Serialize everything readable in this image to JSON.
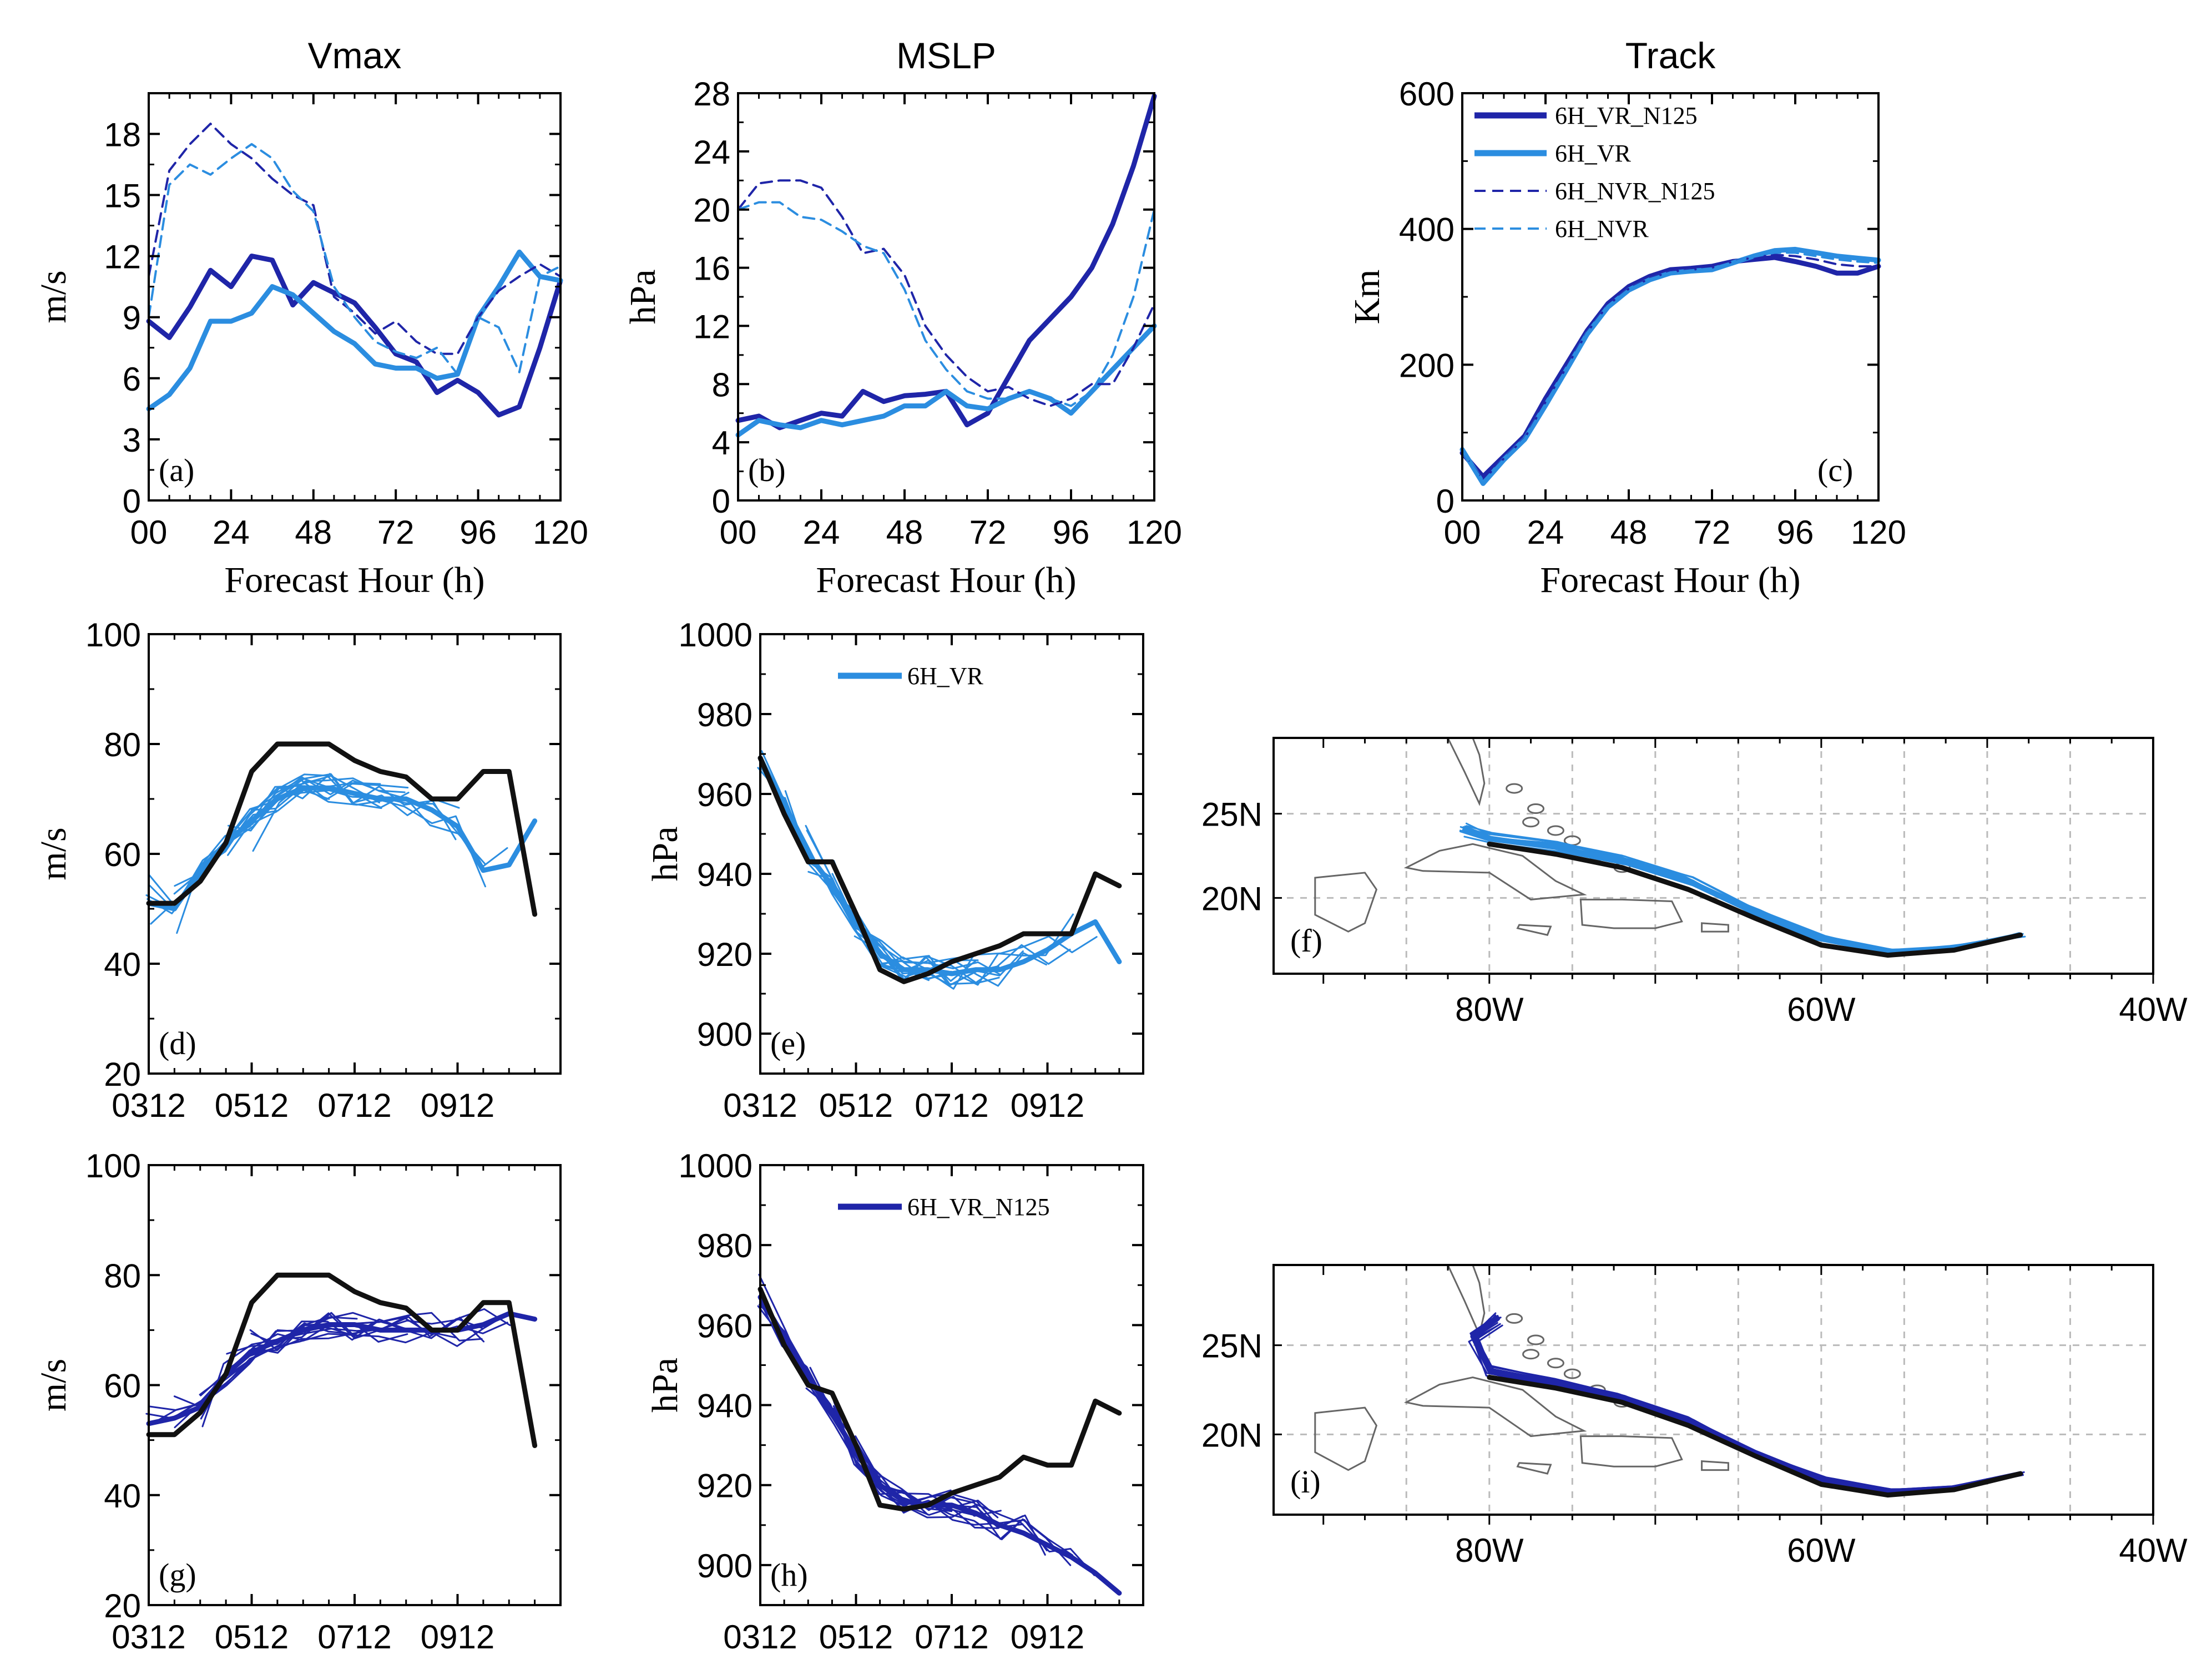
{
  "colors": {
    "vr_n125": "#1f25a8",
    "vr": "#2b8de0",
    "obs": "#111111",
    "map_coast": "#666666",
    "grid": "#bbbbbb"
  },
  "legend_a": [
    "6H_VR_N125",
    "6H_VR",
    "6H_NVR_N125",
    "6H_NVR"
  ],
  "legend_e": "6H_VR",
  "legend_h": "6H_VR_N125",
  "chart_data": [
    {
      "panel": "(a)",
      "type": "line",
      "title": "Vmax",
      "xlabel": "Forecast Hour (h)",
      "ylabel": "m/s",
      "xlim": [
        0,
        120
      ],
      "ylim": [
        0,
        20
      ],
      "xticks": [
        0,
        24,
        48,
        72,
        96,
        120
      ],
      "xtick_labels": [
        "00",
        "24",
        "48",
        "72",
        "96",
        "120"
      ],
      "yticks": [
        0,
        3,
        6,
        9,
        12,
        15,
        18
      ],
      "ytick_labels": [
        "0",
        "3",
        "6",
        "9",
        "12",
        "15",
        "18"
      ],
      "x": [
        0,
        6,
        12,
        18,
        24,
        30,
        36,
        42,
        48,
        54,
        60,
        66,
        72,
        78,
        84,
        90,
        96,
        102,
        108,
        114,
        120
      ],
      "series": [
        {
          "name": "6H_VR_N125",
          "style": "thick",
          "values": [
            8.8,
            8.0,
            9.5,
            11.3,
            10.5,
            12.0,
            11.8,
            9.6,
            10.7,
            10.2,
            9.7,
            8.5,
            7.2,
            6.8,
            5.3,
            5.9,
            5.3,
            4.2,
            4.6,
            7.5,
            10.8
          ]
        },
        {
          "name": "6H_VR",
          "style": "thick",
          "values": [
            4.5,
            5.2,
            6.5,
            8.8,
            8.8,
            9.2,
            10.5,
            10.1,
            9.2,
            8.3,
            7.7,
            6.7,
            6.5,
            6.5,
            6.0,
            6.2,
            9.0,
            10.5,
            12.2,
            11.0,
            10.8
          ]
        },
        {
          "name": "6H_NVR_N125",
          "style": "dashed",
          "values": [
            11.0,
            16.2,
            17.5,
            18.5,
            17.5,
            16.8,
            15.8,
            15.0,
            14.5,
            10.0,
            9.2,
            8.2,
            8.8,
            7.8,
            7.2,
            7.2,
            9.0,
            10.3,
            11.0,
            11.6,
            11.0
          ]
        },
        {
          "name": "6H_NVR",
          "style": "dashed",
          "values": [
            9.0,
            15.5,
            16.5,
            16.0,
            16.8,
            17.5,
            16.8,
            15.2,
            14.2,
            10.5,
            9.0,
            7.8,
            7.3,
            7.0,
            7.5,
            6.2,
            9.0,
            8.5,
            6.3,
            11.0,
            11.5
          ]
        }
      ]
    },
    {
      "panel": "(b)",
      "type": "line",
      "title": "MSLP",
      "xlabel": "Forecast Hour (h)",
      "ylabel": "hPa",
      "xlim": [
        0,
        120
      ],
      "ylim": [
        0,
        28
      ],
      "xticks": [
        0,
        24,
        48,
        72,
        96,
        120
      ],
      "xtick_labels": [
        "00",
        "24",
        "48",
        "72",
        "96",
        "120"
      ],
      "yticks": [
        0,
        4,
        8,
        12,
        16,
        20,
        24,
        28
      ],
      "ytick_labels": [
        "0",
        "4",
        "8",
        "12",
        "16",
        "20",
        "24",
        "28"
      ],
      "x": [
        0,
        6,
        12,
        18,
        24,
        30,
        36,
        42,
        48,
        54,
        60,
        66,
        72,
        78,
        84,
        90,
        96,
        102,
        108,
        114,
        120
      ],
      "series": [
        {
          "name": "6H_VR_N125",
          "style": "thick",
          "values": [
            5.5,
            5.8,
            5.0,
            5.5,
            6.0,
            5.8,
            7.5,
            6.8,
            7.2,
            7.3,
            7.5,
            5.2,
            6.0,
            8.5,
            11.0,
            12.5,
            14.0,
            16.0,
            19.0,
            23.0,
            27.8
          ]
        },
        {
          "name": "6H_VR",
          "style": "thick",
          "values": [
            4.5,
            5.5,
            5.2,
            5.0,
            5.5,
            5.2,
            5.5,
            5.8,
            6.5,
            6.5,
            7.5,
            6.5,
            6.3,
            7.0,
            7.5,
            7.0,
            6.0,
            7.5,
            9.0,
            10.5,
            12.0
          ]
        },
        {
          "name": "6H_NVR_N125",
          "style": "dashed",
          "values": [
            20.0,
            21.8,
            22.0,
            22.0,
            21.5,
            19.5,
            17.0,
            17.3,
            15.5,
            12.0,
            10.0,
            8.5,
            7.5,
            7.8,
            7.0,
            6.5,
            7.0,
            8.0,
            8.0,
            10.5,
            13.5
          ]
        },
        {
          "name": "6H_NVR",
          "style": "dashed",
          "values": [
            20.0,
            20.5,
            20.5,
            19.5,
            19.3,
            18.5,
            17.5,
            17.0,
            14.5,
            11.0,
            9.0,
            7.5,
            7.0,
            7.0,
            7.5,
            7.0,
            6.5,
            7.5,
            10.0,
            14.0,
            20.0
          ]
        }
      ]
    },
    {
      "panel": "(c)",
      "type": "line",
      "title": "Track",
      "xlabel": "Forecast Hour (h)",
      "ylabel": "Km",
      "xlim": [
        0,
        120
      ],
      "ylim": [
        0,
        600
      ],
      "xticks": [
        0,
        24,
        48,
        72,
        96,
        120
      ],
      "xtick_labels": [
        "00",
        "24",
        "48",
        "72",
        "96",
        "120"
      ],
      "yticks": [
        0,
        200,
        400,
        600
      ],
      "ytick_labels": [
        "0",
        "200",
        "400",
        "600"
      ],
      "x": [
        0,
        6,
        12,
        18,
        24,
        30,
        36,
        42,
        48,
        54,
        60,
        66,
        72,
        78,
        84,
        90,
        96,
        102,
        108,
        114,
        120
      ],
      "series": [
        {
          "name": "6H_VR_N125",
          "style": "thick",
          "values": [
            70,
            35,
            65,
            95,
            150,
            200,
            250,
            290,
            315,
            330,
            340,
            342,
            345,
            352,
            355,
            358,
            352,
            345,
            335,
            335,
            345
          ]
        },
        {
          "name": "6H_VR",
          "style": "thick",
          "values": [
            75,
            25,
            60,
            90,
            140,
            192,
            245,
            285,
            310,
            325,
            335,
            338,
            340,
            350,
            360,
            368,
            370,
            365,
            360,
            357,
            354
          ]
        },
        {
          "name": "6H_NVR_N125",
          "style": "dashed",
          "values": [
            72,
            30,
            62,
            92,
            145,
            196,
            248,
            288,
            312,
            327,
            337,
            340,
            343,
            352,
            358,
            362,
            360,
            355,
            348,
            345,
            345
          ]
        },
        {
          "name": "6H_NVR",
          "style": "dashed",
          "values": [
            73,
            28,
            61,
            91,
            143,
            194,
            247,
            287,
            311,
            326,
            336,
            339,
            342,
            351,
            359,
            365,
            365,
            360,
            355,
            352,
            350
          ]
        }
      ]
    },
    {
      "panel": "(d)",
      "type": "line",
      "ylabel": "m/s",
      "xlim": [
        0,
        8
      ],
      "ylim": [
        20,
        100
      ],
      "xticks": [
        0,
        2,
        4,
        6
      ],
      "xtick_labels": [
        "0312",
        "0512",
        "0712",
        "0912"
      ],
      "yticks": [
        20,
        40,
        60,
        80,
        100
      ],
      "ytick_labels": [
        "20",
        "40",
        "60",
        "80",
        "100"
      ],
      "observed": {
        "x": [
          0,
          0.5,
          1,
          1.5,
          2,
          2.5,
          3,
          3.5,
          4,
          4.5,
          5,
          5.5,
          6,
          6.5,
          7,
          7.5
        ],
        "values": [
          51,
          51,
          55,
          62,
          75,
          80,
          80,
          80,
          77,
          75,
          74,
          70,
          70,
          75,
          75,
          49
        ]
      },
      "ensemble": "6H_VR",
      "ensemble_mean_x": [
        0,
        0.5,
        1,
        1.5,
        2,
        2.5,
        3,
        3.5,
        4,
        4.5,
        5,
        5.5,
        6,
        6.5,
        7,
        7.5
      ],
      "ensemble_mean": [
        51,
        50,
        57,
        62,
        66,
        70,
        72,
        72,
        71,
        70,
        70,
        68,
        65,
        57,
        58,
        66
      ]
    },
    {
      "panel": "(e)",
      "type": "line",
      "ylabel": "hPa",
      "xlim": [
        0,
        8
      ],
      "ylim": [
        890,
        1000
      ],
      "xticks": [
        0,
        2,
        4,
        6
      ],
      "xtick_labels": [
        "0312",
        "0512",
        "0712",
        "0912"
      ],
      "yticks": [
        900,
        920,
        940,
        960,
        980,
        1000
      ],
      "ytick_labels": [
        "900",
        "920",
        "940",
        "960",
        "980",
        "1000"
      ],
      "observed": {
        "x": [
          0,
          0.5,
          1,
          1.5,
          2,
          2.5,
          3,
          3.5,
          4,
          4.5,
          5,
          5.5,
          6,
          6.5,
          7,
          7.5
        ],
        "values": [
          969,
          955,
          943,
          943,
          930,
          916,
          913,
          915,
          918,
          920,
          922,
          925,
          925,
          925,
          940,
          937
        ]
      },
      "ensemble": "6H_VR",
      "ensemble_mean_x": [
        0,
        0.5,
        1,
        1.5,
        2,
        2.5,
        3,
        3.5,
        4,
        4.5,
        5,
        5.5,
        6,
        6.5,
        7,
        7.5
      ],
      "ensemble_mean": [
        969,
        957,
        945,
        937,
        928,
        920,
        916,
        916,
        915,
        916,
        916,
        918,
        921,
        925,
        928,
        918
      ]
    },
    {
      "panel": "(f)",
      "type": "map",
      "ensemble": "6H_VR",
      "lon_ticks": [
        "80W",
        "60W",
        "40W"
      ],
      "lat_ticks": [
        "25N",
        "20N"
      ],
      "observed_track": {
        "lon": [
          -48,
          -52,
          -56,
          -60,
          -64,
          -68,
          -72,
          -76,
          -80
        ],
        "lat": [
          17.8,
          16.9,
          16.6,
          17.2,
          18.8,
          20.5,
          21.8,
          22.6,
          23.2
        ]
      },
      "ensemble_track": {
        "lon": [
          -48,
          -52,
          -56,
          -60,
          -64,
          -68,
          -72,
          -76,
          -80,
          -81.5
        ],
        "lat": [
          17.8,
          17.0,
          16.8,
          17.6,
          19.2,
          21.0,
          22.2,
          23.0,
          23.5,
          24.0
        ]
      }
    },
    {
      "panel": "(g)",
      "type": "line",
      "ylabel": "m/s",
      "xlim": [
        0,
        8
      ],
      "ylim": [
        20,
        100
      ],
      "xticks": [
        0,
        2,
        4,
        6
      ],
      "xtick_labels": [
        "0312",
        "0512",
        "0712",
        "0912"
      ],
      "yticks": [
        20,
        40,
        60,
        80,
        100
      ],
      "ytick_labels": [
        "20",
        "40",
        "60",
        "80",
        "100"
      ],
      "observed": {
        "x": [
          0,
          0.5,
          1,
          1.5,
          2,
          2.5,
          3,
          3.5,
          4,
          4.5,
          5,
          5.5,
          6,
          6.5,
          7,
          7.5
        ],
        "values": [
          51,
          51,
          55,
          62,
          75,
          80,
          80,
          80,
          77,
          75,
          74,
          70,
          70,
          75,
          75,
          49
        ]
      },
      "ensemble": "6H_VR_N125",
      "ensemble_mean_x": [
        0,
        0.5,
        1,
        1.5,
        2,
        2.5,
        3,
        3.5,
        4,
        4.5,
        5,
        5.5,
        6,
        6.5,
        7,
        7.5
      ],
      "ensemble_mean": [
        53,
        54,
        56,
        62,
        66,
        68,
        70,
        71,
        71,
        70,
        70,
        70,
        70,
        71,
        73,
        72
      ]
    },
    {
      "panel": "(h)",
      "type": "line",
      "ylabel": "hPa",
      "xlim": [
        0,
        8
      ],
      "ylim": [
        890,
        1000
      ],
      "xticks": [
        0,
        2,
        4,
        6
      ],
      "xtick_labels": [
        "0312",
        "0512",
        "0712",
        "0912"
      ],
      "yticks": [
        900,
        920,
        940,
        960,
        980,
        1000
      ],
      "ytick_labels": [
        "900",
        "920",
        "940",
        "960",
        "980",
        "1000"
      ],
      "observed": {
        "x": [
          0,
          0.5,
          1,
          1.5,
          2,
          2.5,
          3,
          3.5,
          4,
          4.5,
          5,
          5.5,
          6,
          6.5,
          7,
          7.5
        ],
        "values": [
          969,
          955,
          945,
          943,
          930,
          915,
          914,
          915,
          918,
          920,
          922,
          927,
          925,
          925,
          941,
          938
        ]
      },
      "ensemble": "6H_VR_N125",
      "ensemble_mean_x": [
        0,
        0.5,
        1,
        1.5,
        2,
        2.5,
        3,
        3.5,
        4,
        4.5,
        5,
        5.5,
        6,
        6.5,
        7,
        7.5
      ],
      "ensemble_mean": [
        967,
        957,
        947,
        938,
        928,
        920,
        916,
        915,
        915,
        913,
        910,
        908,
        905,
        902,
        898,
        893
      ]
    },
    {
      "panel": "(i)",
      "type": "map",
      "ensemble": "6H_VR_N125",
      "lon_ticks": [
        "80W",
        "60W",
        "40W"
      ],
      "lat_ticks": [
        "25N",
        "20N"
      ],
      "observed_track": {
        "lon": [
          -48,
          -52,
          -56,
          -60,
          -64,
          -68,
          -72,
          -76,
          -80
        ],
        "lat": [
          17.8,
          16.9,
          16.6,
          17.2,
          18.8,
          20.5,
          21.8,
          22.6,
          23.2
        ]
      },
      "ensemble_track": {
        "lon": [
          -48,
          -52,
          -56,
          -60,
          -64,
          -68,
          -72,
          -76,
          -80,
          -81,
          -79.5
        ],
        "lat": [
          17.8,
          17.0,
          16.8,
          17.5,
          19.0,
          20.8,
          22.0,
          22.9,
          23.6,
          25.5,
          26.5
        ]
      }
    }
  ]
}
